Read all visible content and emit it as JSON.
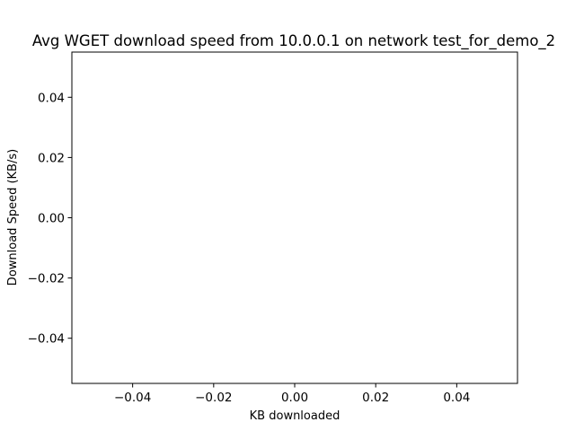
{
  "chart_data": {
    "type": "line",
    "title": "Avg WGET download speed from 10.0.0.1 on network test_for_demo_2",
    "xlabel": "KB downloaded",
    "ylabel": "Download Speed (KB/s)",
    "xlim": [
      -0.055,
      0.055
    ],
    "ylim": [
      -0.055,
      0.055
    ],
    "x_ticks": [
      -0.04,
      -0.02,
      0.0,
      0.02,
      0.04
    ],
    "x_tick_labels": [
      "−0.04",
      "−0.02",
      "0.00",
      "0.02",
      "0.04"
    ],
    "y_ticks": [
      -0.04,
      -0.02,
      0.0,
      0.02,
      0.04
    ],
    "y_tick_labels": [
      "−0.04",
      "−0.02",
      "0.00",
      "0.02",
      "0.04"
    ],
    "series": [],
    "grid": false,
    "legend": "none"
  }
}
